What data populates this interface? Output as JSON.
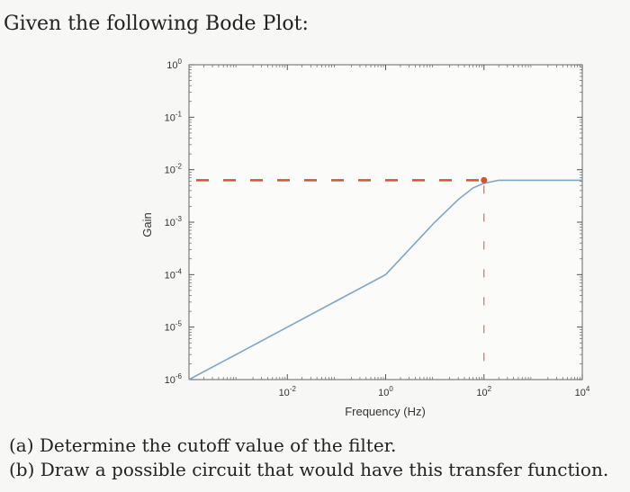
{
  "intro": "Given the following Bode Plot:",
  "questions": {
    "a": "(a) Determine the cutoff value of the filter.",
    "b": "(b) Draw a possible circuit that would have this transfer function."
  },
  "chart_data": {
    "type": "line",
    "xlabel": "Frequency (Hz)",
    "ylabel": "Gain",
    "xscale": "log",
    "yscale": "log",
    "xlim": [
      0.0001,
      10000
    ],
    "ylim": [
      1e-06,
      1
    ],
    "xticks": [
      {
        "base": "10",
        "exp": "-2",
        "value": 0.01
      },
      {
        "base": "10",
        "exp": "0",
        "value": 1
      },
      {
        "base": "10",
        "exp": "2",
        "value": 100
      },
      {
        "base": "10",
        "exp": "4",
        "value": 10000
      }
    ],
    "yticks": [
      {
        "base": "10",
        "exp": "0",
        "value": 1
      },
      {
        "base": "10",
        "exp": "-1",
        "value": 0.1
      },
      {
        "base": "10",
        "exp": "-2",
        "value": 0.01
      },
      {
        "base": "10",
        "exp": "-3",
        "value": 0.001
      },
      {
        "base": "10",
        "exp": "-4",
        "value": 0.0001
      },
      {
        "base": "10",
        "exp": "-5",
        "value": 1e-05
      },
      {
        "base": "10",
        "exp": "-6",
        "value": 1e-06
      }
    ],
    "series": [
      {
        "color": "#7ea6c9",
        "x": [
          0.0001,
          0.001,
          0.01,
          0.1,
          1,
          10,
          30,
          60,
          100,
          200,
          500,
          1000,
          10000
        ],
        "y": [
          1e-06,
          3.16e-06,
          1e-05,
          3.16e-05,
          0.0001,
          0.001,
          0.0027,
          0.0045,
          0.0055,
          0.0063,
          0.0063,
          0.0063,
          0.0063
        ]
      }
    ],
    "annotations": {
      "color": "#d9522b",
      "point": {
        "x": 100,
        "y": 0.0063
      },
      "horizontal_dashed_y": 0.0063,
      "vertical_dashed_x": 100
    },
    "grid": false,
    "legend": "none"
  }
}
